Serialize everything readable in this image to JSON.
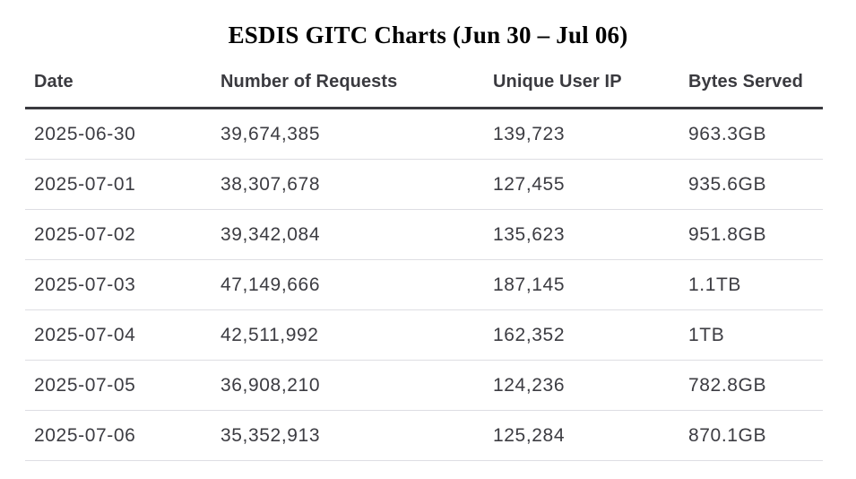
{
  "chart_data": {
    "type": "table",
    "title": "ESDIS GITC Charts (Jun 30 – Jul 06)",
    "columns": [
      "Date",
      "Number of Requests",
      "Unique User IP",
      "Bytes Served"
    ],
    "rows": [
      [
        "2025-06-30",
        "39,674,385",
        "139,723",
        "963.3GB"
      ],
      [
        "2025-07-01",
        "38,307,678",
        "127,455",
        "935.6GB"
      ],
      [
        "2025-07-02",
        "39,342,084",
        "135,623",
        "951.8GB"
      ],
      [
        "2025-07-03",
        "47,149,666",
        "187,145",
        "1.1TB"
      ],
      [
        "2025-07-04",
        "42,511,992",
        "162,352",
        "1TB"
      ],
      [
        "2025-07-05",
        "36,908,210",
        "124,236",
        "782.8GB"
      ],
      [
        "2025-07-06",
        "35,352,913",
        "125,284",
        "870.1GB"
      ]
    ]
  }
}
